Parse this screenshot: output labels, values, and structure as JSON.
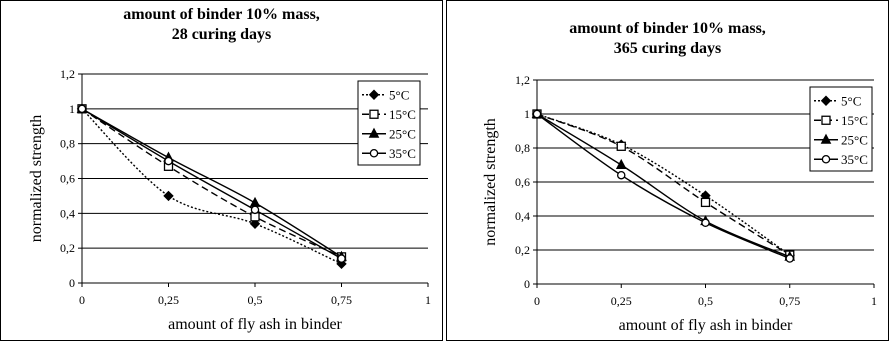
{
  "chart_data": [
    {
      "type": "line",
      "title_lines": [
        "amount of binder 10% mass,",
        "28 curing days"
      ],
      "xlabel": "amount of fly ash in binder",
      "ylabel": "normalized strength",
      "xlim": [
        0,
        1
      ],
      "ylim": [
        0,
        1.2
      ],
      "x_ticks": [
        "0",
        "0,25",
        "0,5",
        "0,75",
        "1"
      ],
      "y_ticks": [
        "0",
        "0,2",
        "0,4",
        "0,6",
        "0,8",
        "1",
        "1,2"
      ],
      "grid": true,
      "legend_position": "top-right",
      "x": [
        0,
        0.25,
        0.5,
        0.75
      ],
      "series": [
        {
          "name": "5°C",
          "marker": "diamond",
          "dash": "2,2",
          "values": [
            1,
            0.5,
            0.34,
            0.11
          ]
        },
        {
          "name": "15°C",
          "marker": "square-open",
          "dash": "7,4",
          "values": [
            1,
            0.67,
            0.38,
            0.15
          ]
        },
        {
          "name": "25°C",
          "marker": "triangle",
          "dash": "",
          "values": [
            1,
            0.72,
            0.46,
            0.15
          ]
        },
        {
          "name": "35°C",
          "marker": "circle-open",
          "dash": "",
          "values": [
            1,
            0.7,
            0.42,
            0.14
          ]
        }
      ]
    },
    {
      "type": "line",
      "title_lines": [
        "amount of binder 10% mass,",
        "365 curing days"
      ],
      "xlabel": "amount of fly ash in binder",
      "ylabel": "normalized strength",
      "xlim": [
        0,
        1
      ],
      "ylim": [
        0,
        1.2
      ],
      "x_ticks": [
        "0",
        "0,25",
        "0,5",
        "0,75",
        "1"
      ],
      "y_ticks": [
        "0",
        "0,2",
        "0,4",
        "0,6",
        "0,8",
        "1",
        "1,2"
      ],
      "grid": true,
      "legend_position": "top-right",
      "x": [
        0,
        0.25,
        0.5,
        0.75
      ],
      "series": [
        {
          "name": "5°C",
          "marker": "diamond",
          "dash": "2,2",
          "values": [
            1,
            0.82,
            0.52,
            0.17
          ]
        },
        {
          "name": "15°C",
          "marker": "square-open",
          "dash": "7,4",
          "values": [
            1,
            0.81,
            0.48,
            0.17
          ]
        },
        {
          "name": "25°C",
          "marker": "triangle",
          "dash": "",
          "values": [
            1,
            0.7,
            0.37,
            0.16
          ]
        },
        {
          "name": "35°C",
          "marker": "circle-open",
          "dash": "",
          "values": [
            1,
            0.64,
            0.36,
            0.15
          ]
        }
      ]
    }
  ]
}
